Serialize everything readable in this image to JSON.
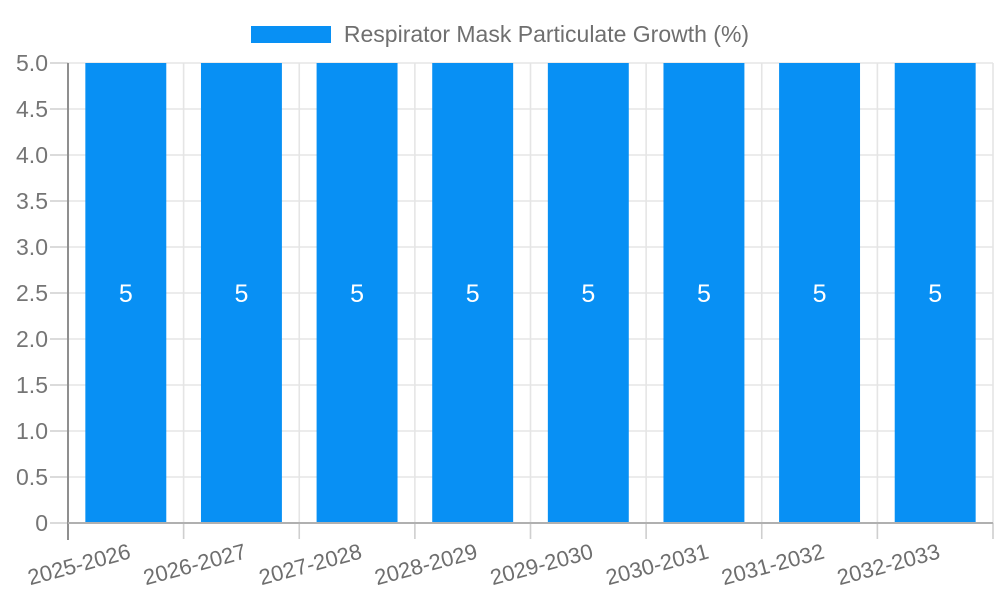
{
  "chart_data": {
    "type": "bar",
    "title": "Respirator Mask Particulate Growth (%)",
    "categories": [
      "2025-2026",
      "2026-2027",
      "2027-2028",
      "2028-2029",
      "2029-2030",
      "2030-2031",
      "2031-2032",
      "2032-2033"
    ],
    "values": [
      5,
      5,
      5,
      5,
      5,
      5,
      5,
      5
    ],
    "bar_value_labels": [
      "5",
      "5",
      "5",
      "5",
      "5",
      "5",
      "5",
      "5"
    ],
    "xlabel": "",
    "ylabel": "",
    "ylim": [
      0,
      5
    ],
    "ytick_step": 0.5,
    "ytick_labels": [
      "0",
      "0.5",
      "1.0",
      "1.5",
      "2.0",
      "2.5",
      "3.0",
      "3.5",
      "4.0",
      "4.5",
      "5.0"
    ],
    "grid": true,
    "legend_position": "top-center",
    "colors": {
      "bar": "#0890F4",
      "bar_value_label": "#FFFFFF",
      "legend_text": "#6F6F6F",
      "ytick_text": "#757575",
      "xtick_text": "#6E6E6E",
      "gridline": "#E5E5E5",
      "tick_stub": "#CFCFCF",
      "y_axis_line": "#8F8F8F",
      "x_axis_line": "#B0B0B0"
    }
  }
}
